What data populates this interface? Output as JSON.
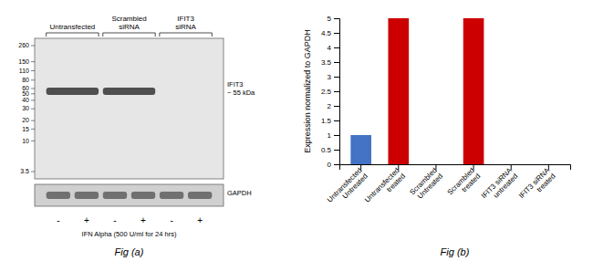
{
  "chart_data": [
    {
      "type": "western_blot",
      "title": "Fig (a)",
      "group_labels": [
        "Untransfected",
        "Scrambled\nsiRNA",
        "IFIT3\nsiRNA"
      ],
      "molecular_weights": [
        260,
        150,
        110,
        80,
        60,
        50,
        40,
        30,
        20,
        15,
        10,
        3.5
      ],
      "categories": [
        "-",
        "+",
        "-",
        "+",
        "-",
        "+"
      ],
      "annotations": [
        "IFIT3\n~ 55 kDa",
        "GAPDH",
        "IFN Alpha (500 U/ml for 24 hrs)"
      ]
    },
    {
      "type": "bar",
      "title": "Fig (b)",
      "categories": [
        "Untransfected\nUntreated",
        "Untransfected\ntreated",
        "Scrambled\nUntreated",
        "Scrambled\ntreated",
        "IFIT3 siRNA\nuntreated",
        "IFIT3 siRNA\ntreated"
      ],
      "values": [
        1.0,
        5.0,
        0.0,
        5.0,
        0.0,
        0.0
      ],
      "colors": [
        "#4472c4",
        "#cc0000",
        "#cc0000",
        "#cc0000",
        "#cc0000",
        "#cc0000"
      ],
      "ylabel": "Expression normalized to GAPDH",
      "ylim": [
        0,
        5
      ],
      "yticks": [
        0,
        0.5,
        1,
        1.5,
        2,
        2.5,
        3,
        3.5,
        4,
        4.5,
        5
      ],
      "grid": false
    }
  ]
}
